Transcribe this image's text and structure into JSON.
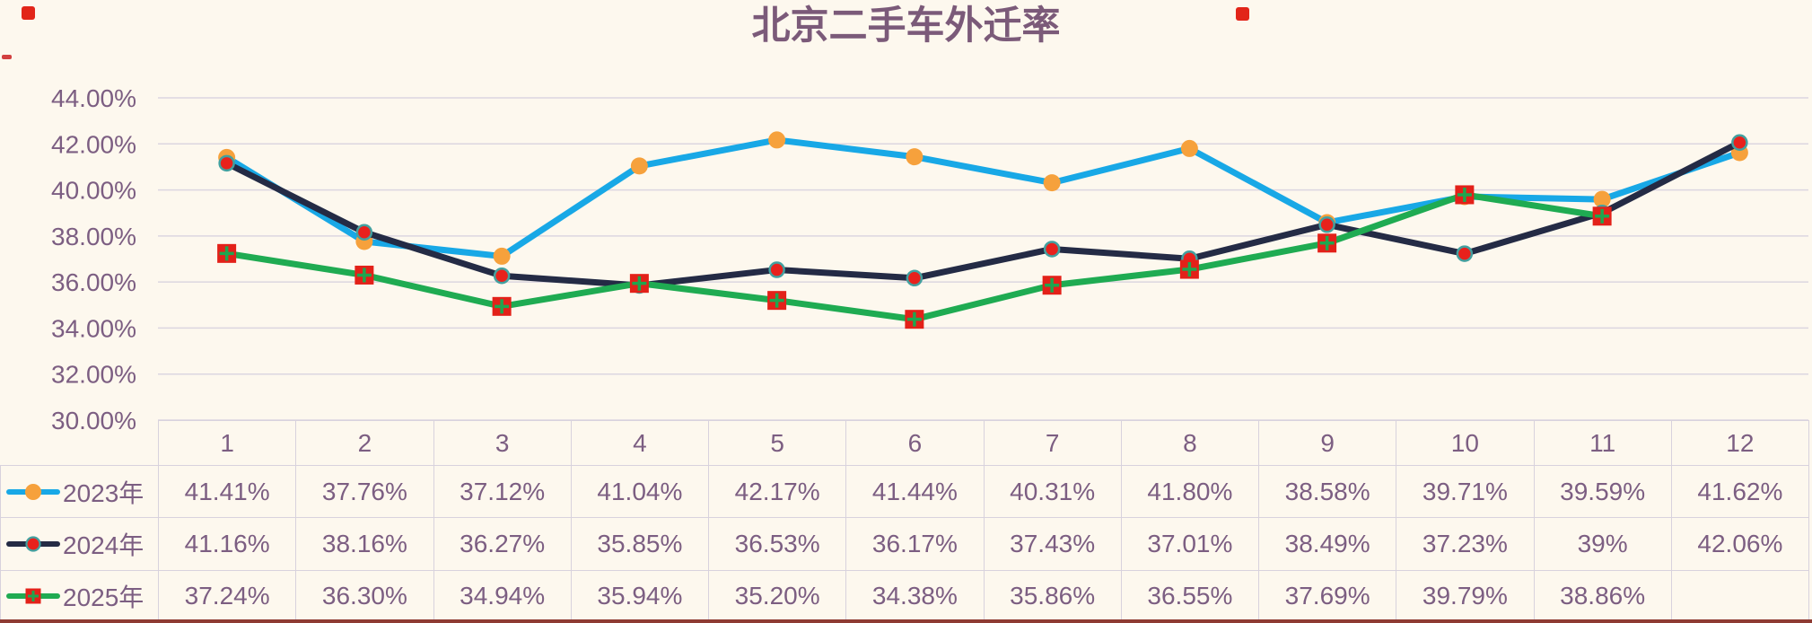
{
  "title": "北京二手车外迁率",
  "colors": {
    "background": "#FDF8EE",
    "title_text": "#7B5A79",
    "axis_text": "#7C5E82",
    "grid_line": "#DCD6E0",
    "table_border": "#D8D2DD",
    "table_text": "#7C5E82",
    "corner_mark": "#E22519",
    "bottom_strip": "#8E3B33"
  },
  "y_axis": {
    "tick_labels": [
      "44.00%",
      "42.00%",
      "40.00%",
      "38.00%",
      "36.00%",
      "34.00%",
      "32.00%",
      "30.00%"
    ],
    "min": 30,
    "max": 44,
    "step": 2
  },
  "chart_data": {
    "type": "line",
    "title": "北京二手车外迁率",
    "categories": [
      "1",
      "2",
      "3",
      "4",
      "5",
      "6",
      "7",
      "8",
      "9",
      "10",
      "11",
      "12"
    ],
    "xlabel": "",
    "ylabel": "",
    "ylim": [
      30,
      44
    ],
    "grid": true,
    "legend_position": "table-left",
    "series": [
      {
        "name": "2023年",
        "values": [
          41.41,
          37.76,
          37.12,
          41.04,
          42.17,
          41.44,
          40.31,
          41.8,
          38.58,
          39.71,
          39.59,
          41.62
        ],
        "display": [
          "41.41%",
          "37.76%",
          "37.12%",
          "41.04%",
          "42.17%",
          "41.44%",
          "40.31%",
          "41.80%",
          "38.58%",
          "39.71%",
          "39.59%",
          "41.62%"
        ],
        "line_color": "#18A8E6",
        "marker": "circle",
        "marker_color": "#F6A13C"
      },
      {
        "name": "2024年",
        "values": [
          41.16,
          38.16,
          36.27,
          35.85,
          36.53,
          36.17,
          37.43,
          37.01,
          38.49,
          37.23,
          39,
          42.06
        ],
        "display": [
          "41.16%",
          "38.16%",
          "36.27%",
          "35.85%",
          "36.53%",
          "36.17%",
          "37.43%",
          "37.01%",
          "38.49%",
          "37.23%",
          "39%",
          "42.06%"
        ],
        "line_color": "#242B45",
        "marker": "ring-circle",
        "marker_color": "#E8211C",
        "marker_ring": "#43A09F"
      },
      {
        "name": "2025年",
        "values": [
          37.24,
          36.3,
          34.94,
          35.94,
          35.2,
          34.38,
          35.86,
          36.55,
          37.69,
          39.79,
          38.86,
          null
        ],
        "display": [
          "37.24%",
          "36.30%",
          "34.94%",
          "35.94%",
          "35.20%",
          "34.38%",
          "35.86%",
          "36.55%",
          "37.69%",
          "39.79%",
          "38.86%",
          ""
        ],
        "line_color": "#1FAB52",
        "marker": "cross-square",
        "marker_color": "#E32119",
        "marker_cross": "#1FA64F"
      }
    ]
  }
}
